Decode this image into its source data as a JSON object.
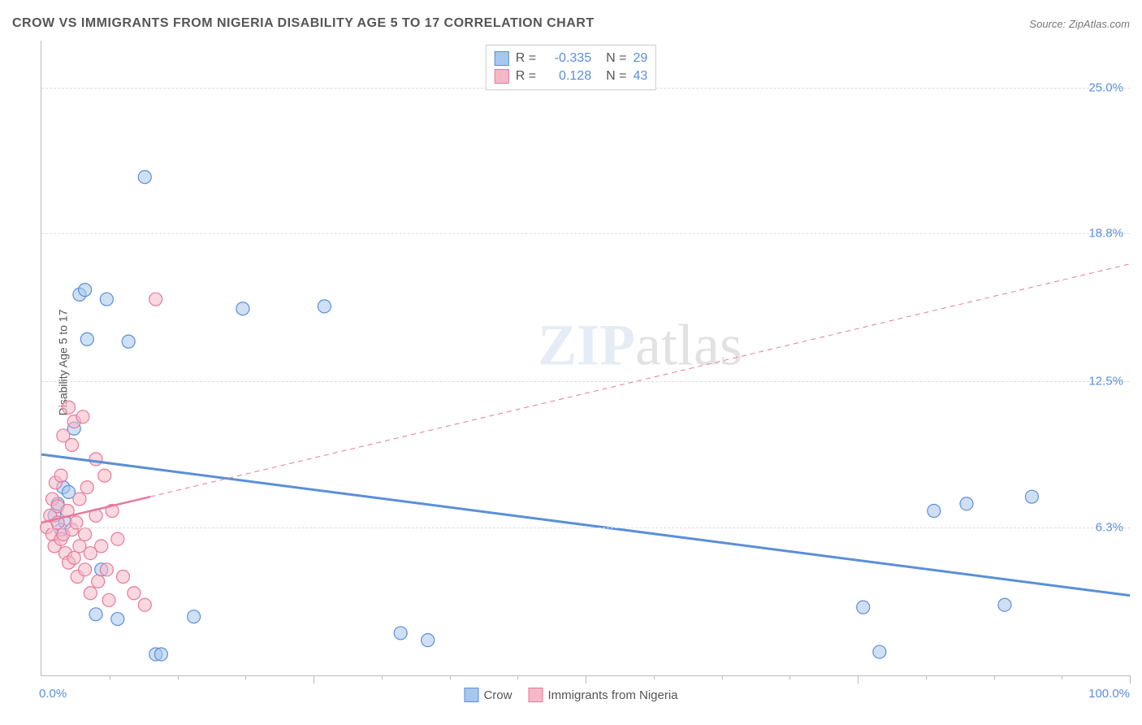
{
  "title": "CROW VS IMMIGRANTS FROM NIGERIA DISABILITY AGE 5 TO 17 CORRELATION CHART",
  "source_label": "Source:",
  "source_value": "ZipAtlas.com",
  "ylabel": "Disability Age 5 to 17",
  "xlabel_min": "0.0%",
  "xlabel_max": "100.0%",
  "watermark_bold": "ZIP",
  "watermark_thin": "atlas",
  "chart": {
    "type": "scatter",
    "xlim": [
      0,
      100
    ],
    "ylim": [
      0,
      27
    ],
    "yticks": [
      {
        "v": 6.3,
        "label": "6.3%"
      },
      {
        "v": 12.5,
        "label": "12.5%"
      },
      {
        "v": 18.8,
        "label": "18.8%"
      },
      {
        "v": 25.0,
        "label": "25.0%"
      }
    ],
    "xticks_minor": [
      6.25,
      12.5,
      18.75,
      25,
      31.25,
      37.5,
      43.75,
      50,
      56.25,
      62.5,
      68.75,
      75,
      81.25,
      87.5,
      93.75,
      100
    ],
    "xticks_major": [
      25,
      50,
      75,
      100
    ],
    "background_color": "#ffffff",
    "grid_color": "#dddddd",
    "marker_radius": 8,
    "marker_opacity": 0.55,
    "series": [
      {
        "name": "Crow",
        "color_fill": "#a7c7ed",
        "color_stroke": "#5b8fd8",
        "r": "-0.335",
        "n": "29",
        "trend": {
          "x1": 0,
          "y1": 9.4,
          "x2": 100,
          "y2": 3.4,
          "width": 3,
          "dash": "none"
        },
        "points": [
          [
            1.2,
            6.8
          ],
          [
            1.5,
            7.3
          ],
          [
            1.8,
            6.2
          ],
          [
            2.0,
            8.0
          ],
          [
            2.2,
            6.5
          ],
          [
            2.5,
            7.8
          ],
          [
            3.0,
            10.5
          ],
          [
            3.5,
            16.2
          ],
          [
            4.0,
            16.4
          ],
          [
            4.2,
            14.3
          ],
          [
            5.0,
            2.6
          ],
          [
            5.5,
            4.5
          ],
          [
            6.0,
            16.0
          ],
          [
            7.0,
            2.4
          ],
          [
            8.0,
            14.2
          ],
          [
            9.5,
            21.2
          ],
          [
            10.5,
            0.9
          ],
          [
            11.0,
            0.9
          ],
          [
            14.0,
            2.5
          ],
          [
            18.5,
            15.6
          ],
          [
            26.0,
            15.7
          ],
          [
            33.0,
            1.8
          ],
          [
            35.5,
            1.5
          ],
          [
            75.5,
            2.9
          ],
          [
            77.0,
            1.0
          ],
          [
            82.0,
            7.0
          ],
          [
            85.0,
            7.3
          ],
          [
            88.5,
            3.0
          ],
          [
            91.0,
            7.6
          ]
        ]
      },
      {
        "name": "Immigrants from Nigeria",
        "color_fill": "#f4b8c6",
        "color_stroke": "#e67a9a",
        "r": "0.128",
        "n": "43",
        "trend_solid": {
          "x1": 0,
          "y1": 6.5,
          "x2": 10,
          "y2": 7.6,
          "width": 2.5
        },
        "trend_dashed": {
          "x1": 10,
          "y1": 7.6,
          "x2": 100,
          "y2": 17.5,
          "width": 1,
          "dash": "6,5"
        },
        "points": [
          [
            0.5,
            6.3
          ],
          [
            0.8,
            6.8
          ],
          [
            1.0,
            6.0
          ],
          [
            1.0,
            7.5
          ],
          [
            1.2,
            5.5
          ],
          [
            1.3,
            8.2
          ],
          [
            1.5,
            6.5
          ],
          [
            1.5,
            7.2
          ],
          [
            1.8,
            5.8
          ],
          [
            1.8,
            8.5
          ],
          [
            2.0,
            6.0
          ],
          [
            2.0,
            10.2
          ],
          [
            2.2,
            5.2
          ],
          [
            2.4,
            7.0
          ],
          [
            2.5,
            4.8
          ],
          [
            2.5,
            11.4
          ],
          [
            2.8,
            6.2
          ],
          [
            2.8,
            9.8
          ],
          [
            3.0,
            5.0
          ],
          [
            3.0,
            10.8
          ],
          [
            3.2,
            6.5
          ],
          [
            3.3,
            4.2
          ],
          [
            3.5,
            7.5
          ],
          [
            3.5,
            5.5
          ],
          [
            3.8,
            11.0
          ],
          [
            4.0,
            6.0
          ],
          [
            4.0,
            4.5
          ],
          [
            4.2,
            8.0
          ],
          [
            4.5,
            5.2
          ],
          [
            4.5,
            3.5
          ],
          [
            5.0,
            6.8
          ],
          [
            5.0,
            9.2
          ],
          [
            5.2,
            4.0
          ],
          [
            5.5,
            5.5
          ],
          [
            5.8,
            8.5
          ],
          [
            6.0,
            4.5
          ],
          [
            6.2,
            3.2
          ],
          [
            6.5,
            7.0
          ],
          [
            7.0,
            5.8
          ],
          [
            7.5,
            4.2
          ],
          [
            8.5,
            3.5
          ],
          [
            9.5,
            3.0
          ],
          [
            10.5,
            16.0
          ]
        ]
      }
    ]
  },
  "legend": {
    "r_label": "R =",
    "n_label": "N ="
  },
  "bottom_legend": [
    {
      "label": "Crow",
      "fill": "#a7c7ed",
      "stroke": "#5b8fd8"
    },
    {
      "label": "Immigrants from Nigeria",
      "fill": "#f4b8c6",
      "stroke": "#e67a9a"
    }
  ]
}
